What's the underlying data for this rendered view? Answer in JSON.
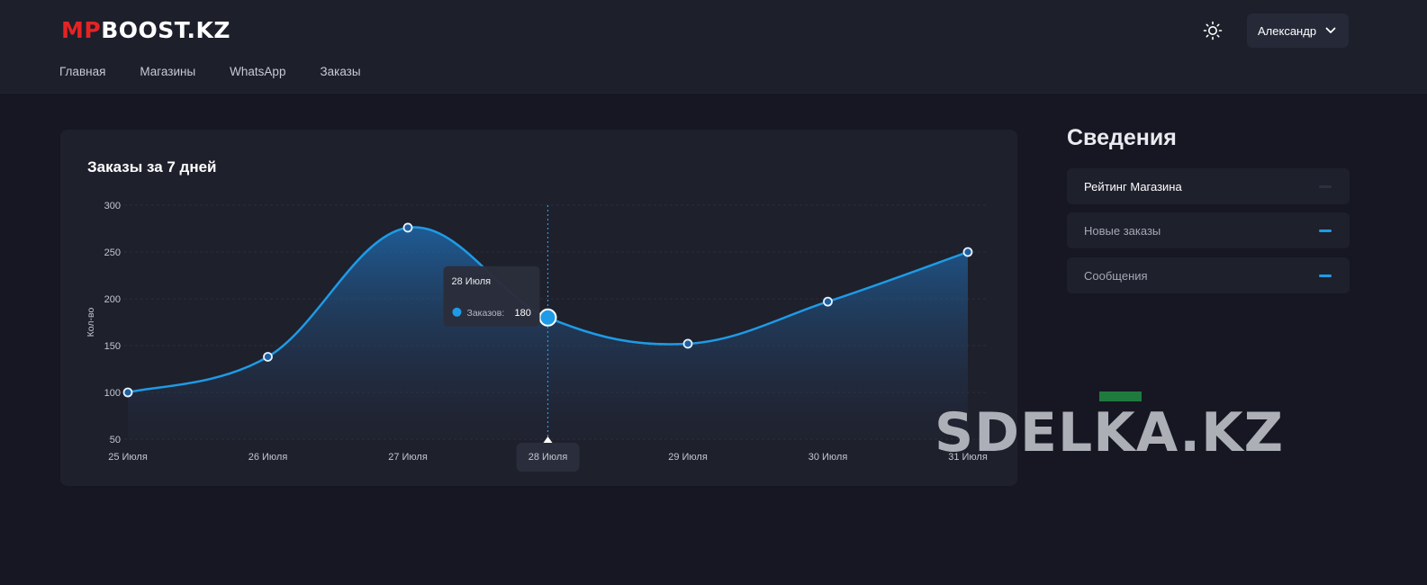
{
  "header": {
    "logo_mp": "MP",
    "logo_rest": "BOOST.KZ",
    "nav": [
      "Главная",
      "Магазины",
      "WhatsApp",
      "Заказы"
    ],
    "user_name": "Александр"
  },
  "chart_card": {
    "title": "Заказы за 7 дней",
    "tooltip": {
      "date": "28 Июля",
      "series_label": "Заказов:",
      "value": "180"
    }
  },
  "info": {
    "title": "Сведения",
    "rows": [
      {
        "label": "Рейтинг Магазина"
      },
      {
        "label": "Новые заказы"
      },
      {
        "label": "Сообщения"
      }
    ]
  },
  "watermark": "SDELKA.KZ",
  "colors": {
    "accent": "#1e9be6",
    "brand_red": "#e52324",
    "background": "#161722",
    "card": "#1e202c"
  },
  "chart_data": {
    "type": "area",
    "categories": [
      "25 Июля",
      "26 Июля",
      "27 Июля",
      "28 Июля",
      "29 Июля",
      "30 Июля",
      "31 Июля"
    ],
    "series": [
      {
        "name": "Заказов",
        "values": [
          100,
          138,
          276,
          180,
          152,
          197,
          250
        ]
      }
    ],
    "ylabel": "Кол-во",
    "yticks": [
      300,
      250,
      200,
      150,
      100,
      50
    ],
    "ylim": [
      50,
      300
    ],
    "highlighted_category": "28 Июля",
    "grid": true
  }
}
